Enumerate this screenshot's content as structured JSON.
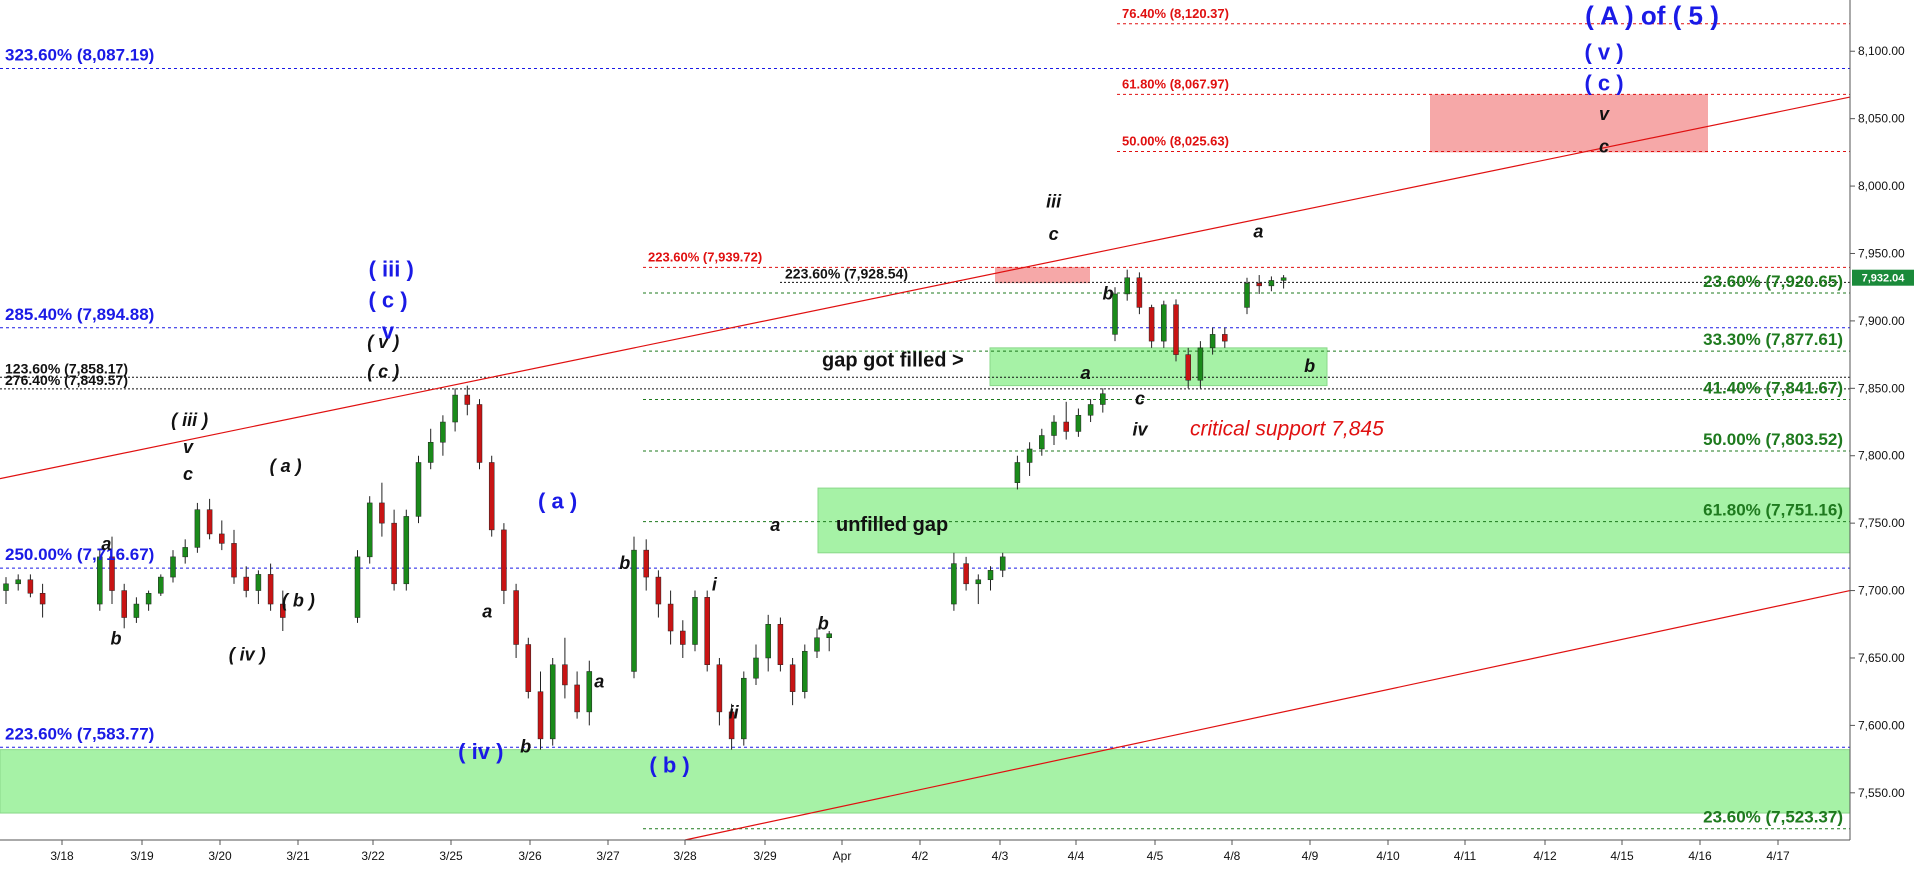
{
  "chart_data": {
    "type": "candlestick",
    "y_ticks": [
      "8,100.00",
      "8,050.00",
      "8,000.00",
      "7,950.00",
      "7,900.00",
      "7,850.00",
      "7,800.00",
      "7,750.00",
      "7,700.00",
      "7,650.00",
      "7,600.00",
      "7,550.00"
    ],
    "ylim": [
      7515,
      8138
    ],
    "x_ticks": [
      "3/18",
      "3/19",
      "3/20",
      "3/21",
      "3/22",
      "3/25",
      "3/26",
      "3/27",
      "3/28",
      "3/29",
      "Apr",
      "4/2",
      "4/3",
      "4/4",
      "4/5",
      "4/8",
      "4/9",
      "4/10",
      "4/11",
      "4/12",
      "4/15",
      "4/16",
      "4/17"
    ],
    "last_price": "7,932.04",
    "colors": {
      "up": "#1a8a1a",
      "down": "#c81414",
      "wick": "#222",
      "fib_blue": "#1a1ae6",
      "fib_green": "#1e7a1e",
      "fib_red": "#e01010",
      "zone_green": "#a6f2a6",
      "zone_red": "#f6a8a8"
    },
    "fib_levels_blue": [
      {
        "label": "323.60% (8,087.19)",
        "value": 8087.19
      },
      {
        "label": "285.40% (7,894.88)",
        "value": 7894.88
      },
      {
        "label": "250.00% (7,716.67)",
        "value": 7716.67
      },
      {
        "label": "223.60% (7,583.77)",
        "value": 7583.77
      }
    ],
    "fib_levels_green": [
      {
        "label": "23.60% (7,920.65)",
        "value": 7920.65
      },
      {
        "label": "33.30% (7,877.61)",
        "value": 7877.61
      },
      {
        "label": "41.40% (7,841.67)",
        "value": 7841.67
      },
      {
        "label": "50.00% (7,803.52)",
        "value": 7803.52
      },
      {
        "label": "61.80% (7,751.16)",
        "value": 7751.16
      },
      {
        "label": "23.60% (7,523.37)",
        "value": 7523.37
      }
    ],
    "fib_levels_red": [
      {
        "label": "76.40% (8,120.37)",
        "value": 8120.37
      },
      {
        "label": "61.80% (8,067.97)",
        "value": 8067.97
      },
      {
        "label": "50.00% (8,025.63)",
        "value": 8025.63
      },
      {
        "label": "223.60% (7,939.72)",
        "value": 7939.72
      }
    ],
    "fib_levels_black": [
      {
        "label": "223.60% (7,928.54)",
        "value": 7928.54
      },
      {
        "label": "123.60% (7,858.17)",
        "value": 7858.17
      },
      {
        "label": "276.40% (7,849.57)",
        "value": 7849.57
      }
    ],
    "wave_labels": [
      {
        "text": "a",
        "x": 3.2,
        "y": 7730
      },
      {
        "text": "b",
        "x": 3.5,
        "y": 7660
      },
      {
        "text": "( iii )",
        "x": 5.8,
        "y": 7822
      },
      {
        "text": "v",
        "x": 5.75,
        "y": 7802
      },
      {
        "text": "c",
        "x": 5.75,
        "y": 7782
      },
      {
        "text": "( iv )",
        "x": 7.6,
        "y": 7648
      },
      {
        "text": "( a )",
        "x": 8.8,
        "y": 7788
      },
      {
        "text": "( b )",
        "x": 9.2,
        "y": 7688
      },
      {
        "text": "( v )",
        "x": 11.85,
        "y": 7880
      },
      {
        "text": "( c )",
        "x": 11.85,
        "y": 7858
      },
      {
        "text": "a",
        "x": 15.1,
        "y": 7680
      },
      {
        "text": "b",
        "x": 16.3,
        "y": 7580
      },
      {
        "text": "a",
        "x": 18.6,
        "y": 7628
      },
      {
        "text": "b",
        "x": 19.4,
        "y": 7716
      },
      {
        "text": "i",
        "x": 22.2,
        "y": 7700
      },
      {
        "text": "ii",
        "x": 22.8,
        "y": 7605
      },
      {
        "text": "a",
        "x": 24.1,
        "y": 7744
      },
      {
        "text": "b",
        "x": 25.6,
        "y": 7671
      },
      {
        "text": "iii",
        "x": 32.8,
        "y": 7984
      },
      {
        "text": "c",
        "x": 32.8,
        "y": 7960
      },
      {
        "text": "b",
        "x": 34.5,
        "y": 7916
      },
      {
        "text": "a",
        "x": 33.8,
        "y": 7857
      },
      {
        "text": "c",
        "x": 35.5,
        "y": 7838
      },
      {
        "text": "iv",
        "x": 35.5,
        "y": 7815
      },
      {
        "text": "a",
        "x": 39.2,
        "y": 7962
      },
      {
        "text": "b",
        "x": 40.8,
        "y": 7862
      },
      {
        "text": "v",
        "x": 50.0,
        "y": 8049
      },
      {
        "text": "c",
        "x": 50.0,
        "y": 8025
      }
    ],
    "wave_labels_blue": [
      {
        "text": "( iii )",
        "x": 12.1,
        "y": 7933
      },
      {
        "text": "( c )",
        "x": 12.0,
        "y": 7910
      },
      {
        "text": "v",
        "x": 12.0,
        "y": 7887
      },
      {
        "text": "( iv )",
        "x": 14.9,
        "y": 7575
      },
      {
        "text": "( a )",
        "x": 17.3,
        "y": 7761
      },
      {
        "text": "( b )",
        "x": 20.8,
        "y": 7565
      },
      {
        "text": "( A ) of ( 5 )",
        "x": 51.5,
        "y": 8120
      },
      {
        "text": "( v )",
        "x": 50.0,
        "y": 8094
      },
      {
        "text": "( c )",
        "x": 50.0,
        "y": 8071
      }
    ],
    "annotations": {
      "gap_filled": "gap got filled >",
      "unfilled_gap": "unfilled gap",
      "critical_support": "critical support 7,845"
    },
    "candles_seed": [
      [
        7700,
        7710,
        7690,
        7705
      ],
      [
        7705,
        7712,
        7700,
        7708
      ],
      [
        7708,
        7712,
        7695,
        7698
      ],
      [
        7698,
        7705,
        7680,
        7690
      ],
      [
        7690,
        7730,
        7685,
        7725
      ],
      [
        7725,
        7740,
        7690,
        7700
      ],
      [
        7700,
        7705,
        7672,
        7680
      ],
      [
        7680,
        7695,
        7676,
        7690
      ],
      [
        7690,
        7700,
        7685,
        7698
      ],
      [
        7698,
        7712,
        7696,
        7710
      ],
      [
        7710,
        7730,
        7706,
        7725
      ],
      [
        7725,
        7738,
        7720,
        7732
      ],
      [
        7732,
        7765,
        7728,
        7760
      ],
      [
        7760,
        7768,
        7738,
        7742
      ],
      [
        7742,
        7752,
        7730,
        7735
      ],
      [
        7735,
        7745,
        7705,
        7710
      ],
      [
        7710,
        7718,
        7695,
        7700
      ],
      [
        7700,
        7715,
        7690,
        7712
      ],
      [
        7712,
        7720,
        7685,
        7690
      ],
      [
        7690,
        7700,
        7670,
        7680
      ],
      [
        7680,
        7730,
        7676,
        7725
      ],
      [
        7725,
        7770,
        7720,
        7765
      ],
      [
        7765,
        7780,
        7740,
        7750
      ],
      [
        7750,
        7760,
        7700,
        7705
      ],
      [
        7705,
        7760,
        7700,
        7755
      ],
      [
        7755,
        7800,
        7750,
        7795
      ],
      [
        7795,
        7820,
        7790,
        7810
      ],
      [
        7810,
        7830,
        7800,
        7825
      ],
      [
        7825,
        7850,
        7818,
        7845
      ],
      [
        7845,
        7852,
        7830,
        7838
      ],
      [
        7838,
        7842,
        7790,
        7795
      ],
      [
        7795,
        7800,
        7740,
        7745
      ],
      [
        7745,
        7750,
        7690,
        7700
      ],
      [
        7700,
        7705,
        7650,
        7660
      ],
      [
        7660,
        7665,
        7620,
        7625
      ],
      [
        7625,
        7640,
        7582,
        7590
      ],
      [
        7590,
        7650,
        7585,
        7645
      ],
      [
        7645,
        7665,
        7620,
        7630
      ],
      [
        7630,
        7640,
        7605,
        7610
      ],
      [
        7610,
        7648,
        7600,
        7640
      ],
      [
        7640,
        7740,
        7635,
        7730
      ],
      [
        7730,
        7738,
        7700,
        7710
      ],
      [
        7710,
        7715,
        7680,
        7690
      ],
      [
        7690,
        7700,
        7660,
        7670
      ],
      [
        7670,
        7678,
        7650,
        7660
      ],
      [
        7660,
        7700,
        7655,
        7695
      ],
      [
        7695,
        7700,
        7640,
        7645
      ],
      [
        7645,
        7650,
        7600,
        7610
      ],
      [
        7610,
        7616,
        7582,
        7590
      ],
      [
        7590,
        7640,
        7585,
        7635
      ],
      [
        7635,
        7660,
        7630,
        7650
      ],
      [
        7650,
        7682,
        7640,
        7675
      ],
      [
        7675,
        7680,
        7640,
        7645
      ],
      [
        7645,
        7650,
        7615,
        7625
      ],
      [
        7625,
        7660,
        7620,
        7655
      ],
      [
        7655,
        7672,
        7650,
        7665
      ],
      [
        7665,
        7670,
        7655,
        7668
      ],
      [
        7690,
        7728,
        7685,
        7720
      ],
      [
        7720,
        7725,
        7700,
        7705
      ],
      [
        7705,
        7712,
        7690,
        7708
      ],
      [
        7708,
        7718,
        7700,
        7715
      ],
      [
        7715,
        7728,
        7710,
        7725
      ],
      [
        7780,
        7800,
        7775,
        7795
      ],
      [
        7795,
        7810,
        7785,
        7805
      ],
      [
        7805,
        7820,
        7800,
        7815
      ],
      [
        7815,
        7830,
        7808,
        7825
      ],
      [
        7825,
        7840,
        7812,
        7818
      ],
      [
        7818,
        7835,
        7814,
        7830
      ],
      [
        7830,
        7842,
        7825,
        7838
      ],
      [
        7838,
        7850,
        7832,
        7846
      ],
      [
        7890,
        7925,
        7885,
        7920
      ],
      [
        7920,
        7938,
        7915,
        7932
      ],
      [
        7932,
        7936,
        7905,
        7910
      ],
      [
        7910,
        7912,
        7880,
        7885
      ],
      [
        7885,
        7915,
        7880,
        7912
      ],
      [
        7912,
        7916,
        7870,
        7875
      ],
      [
        7875,
        7880,
        7850,
        7856
      ],
      [
        7856,
        7885,
        7850,
        7880
      ],
      [
        7880,
        7895,
        7875,
        7890
      ],
      [
        7890,
        7895,
        7880,
        7885
      ],
      [
        7910,
        7932,
        7905,
        7928
      ],
      [
        7928,
        7934,
        7920,
        7926
      ],
      [
        7926,
        7933,
        7922,
        7930
      ],
      [
        7930,
        7934,
        7924,
        7932
      ]
    ]
  }
}
